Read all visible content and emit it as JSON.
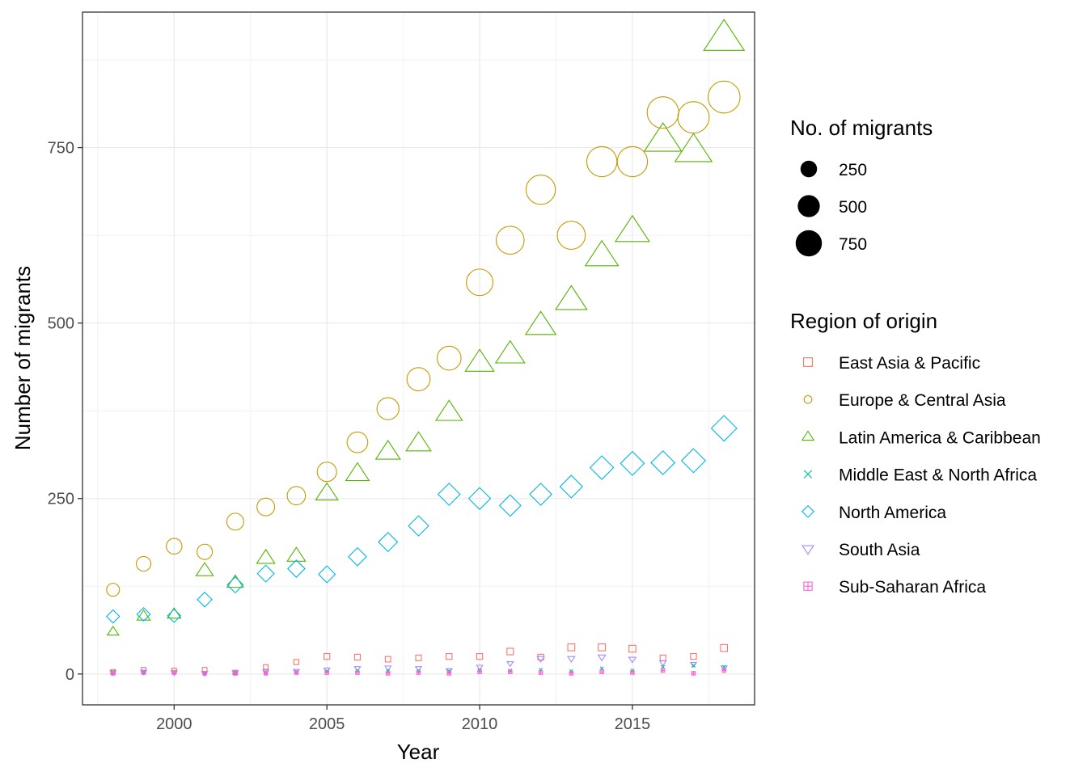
{
  "chart_data": {
    "type": "scatter",
    "title": "",
    "xlabel": "Year",
    "ylabel": "Number of migrants",
    "xlim": [
      1997,
      2019
    ],
    "ylim": [
      -44,
      943
    ],
    "x_ticks": [
      2000,
      2005,
      2010,
      2015
    ],
    "y_ticks": [
      0,
      250,
      500,
      750
    ],
    "grid": true,
    "legend_position": "right",
    "size_legend": {
      "title": "No. of migrants",
      "values": [
        250,
        500,
        750
      ]
    },
    "color_legend_title": "Region of origin",
    "x": [
      1998,
      1999,
      2000,
      2001,
      2002,
      2003,
      2004,
      2005,
      2006,
      2007,
      2008,
      2009,
      2010,
      2011,
      2012,
      2013,
      2014,
      2015,
      2016,
      2017,
      2018
    ],
    "series": [
      {
        "name": "East Asia & Pacific",
        "color": "#F8766D",
        "shape": "square",
        "values": [
          3,
          6,
          5,
          6,
          2,
          10,
          17,
          25,
          24,
          21,
          23,
          25,
          25,
          32,
          24,
          38,
          38,
          36,
          23,
          25,
          37
        ]
      },
      {
        "name": "Europe & Central Asia",
        "color": "#C49A00",
        "shape": "circle",
        "values": [
          120,
          157,
          182,
          174,
          217,
          238,
          254,
          288,
          330,
          378,
          420,
          450,
          558,
          618,
          690,
          625,
          730,
          730,
          800,
          793,
          822
        ]
      },
      {
        "name": "Latin America & Caribbean",
        "color": "#53B400",
        "shape": "triangle-up",
        "values": [
          60,
          82,
          85,
          147,
          130,
          165,
          168,
          257,
          285,
          316,
          328,
          372,
          443,
          455,
          496,
          532,
          595,
          630,
          760,
          745,
          905
        ]
      },
      {
        "name": "Middle East & North Africa",
        "color": "#00C094",
        "shape": "cross",
        "values": [
          3,
          2,
          3,
          1,
          1,
          2,
          3,
          4,
          5,
          4,
          5,
          4,
          5,
          5,
          6,
          4,
          8,
          5,
          10,
          12,
          10
        ]
      },
      {
        "name": "North America",
        "color": "#00B6EB",
        "shape": "diamond",
        "values": [
          82,
          85,
          83,
          106,
          127,
          143,
          150,
          142,
          167,
          188,
          211,
          256,
          250,
          240,
          256,
          267,
          294,
          300,
          301,
          304,
          350
        ]
      },
      {
        "name": "South Asia",
        "color": "#A58AFF",
        "shape": "triangle-down",
        "values": [
          2,
          3,
          2,
          1,
          2,
          3,
          4,
          6,
          8,
          9,
          8,
          5,
          10,
          15,
          22,
          22,
          24,
          21,
          16,
          14,
          9
        ]
      },
      {
        "name": "Sub-Saharan Africa",
        "color": "#FB61D7",
        "shape": "square-plus",
        "values": [
          1,
          2,
          2,
          1,
          1,
          1,
          2,
          2,
          2,
          1,
          2,
          1,
          3,
          3,
          2,
          1,
          3,
          2,
          5,
          1,
          5
        ]
      }
    ]
  }
}
